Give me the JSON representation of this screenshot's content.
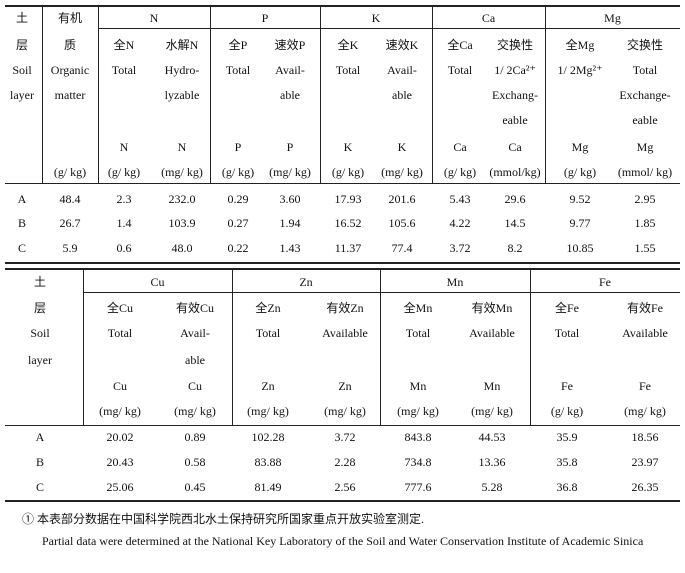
{
  "table1": {
    "groups": [
      "N",
      "P",
      "K",
      "Ca",
      "Mg"
    ],
    "columns": [
      {
        "lines": [
          "土",
          "层",
          "Soil",
          "layer",
          null,
          null,
          null
        ]
      },
      {
        "lines": [
          "有机",
          "质",
          "Organic",
          "matter",
          null,
          null,
          "(g/ kg)"
        ]
      },
      {
        "lines": [
          null,
          "全N",
          "Total",
          null,
          null,
          "N",
          "(g/ kg)"
        ]
      },
      {
        "lines": [
          null,
          "水解N",
          "Hydro-",
          "lyzable",
          null,
          "N",
          "(mg/ kg)"
        ]
      },
      {
        "lines": [
          null,
          "全P",
          "Total",
          null,
          null,
          "P",
          "(g/ kg)"
        ]
      },
      {
        "lines": [
          null,
          "速效P",
          "Avail-",
          "able",
          null,
          "P",
          "(mg/ kg)"
        ]
      },
      {
        "lines": [
          null,
          "全K",
          "Total",
          null,
          null,
          "K",
          "(g/ kg)"
        ]
      },
      {
        "lines": [
          null,
          "速效K",
          "Avail-",
          "able",
          null,
          "K",
          "(mg/ kg)"
        ]
      },
      {
        "lines": [
          null,
          "全Ca",
          "Total",
          null,
          null,
          "Ca",
          "(g/ kg)"
        ]
      },
      {
        "lines": [
          null,
          "交换性",
          "1/ 2Ca²⁺",
          "Exchang-",
          "eable",
          "Ca",
          "(mmol/kg)"
        ]
      },
      {
        "lines": [
          null,
          "全Mg",
          "1/ 2Mg²⁺",
          null,
          null,
          "Mg",
          "(g/ kg)"
        ]
      },
      {
        "lines": [
          null,
          "交换性",
          "Total",
          "Exchange-",
          "eable",
          "Mg",
          "(mmol/ kg)"
        ]
      }
    ],
    "rows": [
      [
        "A",
        "48.4",
        "2.3",
        "232.0",
        "0.29",
        "3.60",
        "17.93",
        "201.6",
        "5.43",
        "29.6",
        "9.52",
        "2.95"
      ],
      [
        "B",
        "26.7",
        "1.4",
        "103.9",
        "0.27",
        "1.94",
        "16.52",
        "105.6",
        "4.22",
        "14.5",
        "9.77",
        "1.85"
      ],
      [
        "C",
        "5.9",
        "0.6",
        "48.0",
        "0.22",
        "1.43",
        "11.37",
        "77.4",
        "3.72",
        "8.2",
        "10.85",
        "1.55"
      ]
    ]
  },
  "table2": {
    "groups": [
      "Cu",
      "Zn",
      "Mn",
      "Fe"
    ],
    "columns": [
      {
        "lines": [
          "土",
          "层",
          "Soil",
          "layer",
          null,
          null
        ]
      },
      {
        "lines": [
          null,
          "全Cu",
          "Total",
          null,
          "Cu",
          "(mg/ kg)"
        ]
      },
      {
        "lines": [
          null,
          "有效Cu",
          "Avail-",
          "able",
          "Cu",
          "(mg/ kg)"
        ]
      },
      {
        "lines": [
          null,
          "全Zn",
          "Total",
          null,
          "Zn",
          "(mg/ kg)"
        ]
      },
      {
        "lines": [
          null,
          "有效Zn",
          "Available",
          null,
          "Zn",
          "(mg/ kg)"
        ]
      },
      {
        "lines": [
          null,
          "全Mn",
          "Total",
          null,
          "Mn",
          "(mg/ kg)"
        ]
      },
      {
        "lines": [
          null,
          "有效Mn",
          "Available",
          null,
          "Mn",
          "(mg/ kg)"
        ]
      },
      {
        "lines": [
          null,
          "全Fe",
          "Total",
          null,
          "Fe",
          "(g/ kg)"
        ]
      },
      {
        "lines": [
          null,
          "有效Fe",
          "Available",
          null,
          "Fe",
          "(mg/ kg)"
        ]
      }
    ],
    "rows": [
      [
        "A",
        "20.02",
        "0.89",
        "102.28",
        "3.72",
        "843.8",
        "44.53",
        "35.9",
        "18.56"
      ],
      [
        "B",
        "20.43",
        "0.58",
        "83.88",
        "2.28",
        "734.8",
        "13.36",
        "35.8",
        "23.97"
      ],
      [
        "C",
        "25.06",
        "0.45",
        "81.49",
        "2.56",
        "777.6",
        "5.28",
        "36.8",
        "26.35"
      ]
    ]
  },
  "footnote": {
    "chinese": "① 本表部分数据在中国科学院西北水土保持研究所国家重点开放实验室测定.",
    "english": "Partial data were determined at the National Key Laboratory of the Soil and Water Conservation Institute of Academic Sinica"
  }
}
